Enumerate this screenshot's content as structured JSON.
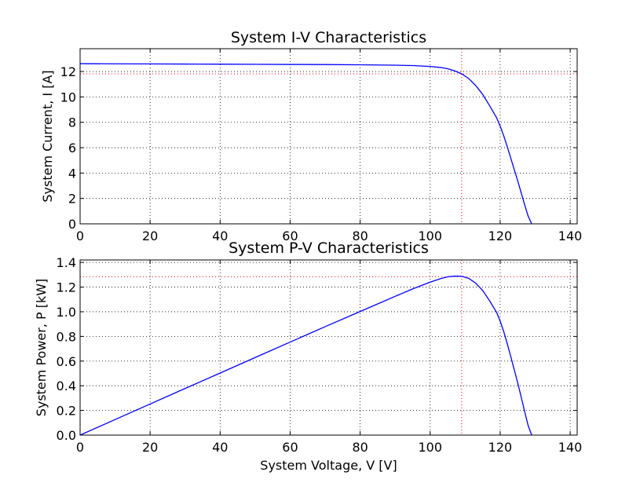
{
  "chart_data": [
    {
      "type": "line",
      "title": "System I-V Characteristics",
      "xlabel": "",
      "ylabel": "System Current, I [A]",
      "xlim": [
        0,
        142
      ],
      "ylim": [
        0,
        13.8
      ],
      "xticks": [
        0,
        20,
        40,
        60,
        80,
        100,
        120,
        140
      ],
      "yticks": [
        0,
        2,
        4,
        6,
        8,
        10,
        12
      ],
      "ytick_labels": [
        "0",
        "2",
        "4",
        "6",
        "8",
        "10",
        "12"
      ],
      "grid": true,
      "series": [
        {
          "color": "#0000ff",
          "x": [
            0,
            10,
            20,
            30,
            40,
            50,
            60,
            70,
            80,
            90,
            95,
            100,
            103,
            105,
            107,
            109,
            111,
            113,
            115,
            117,
            119,
            120,
            121,
            122,
            123,
            124,
            125,
            126,
            127,
            128,
            129
          ],
          "y": [
            12.62,
            12.61,
            12.6,
            12.59,
            12.58,
            12.57,
            12.56,
            12.55,
            12.53,
            12.5,
            12.47,
            12.4,
            12.32,
            12.22,
            12.05,
            11.82,
            11.45,
            10.9,
            10.2,
            9.3,
            8.35,
            7.7,
            6.95,
            6.1,
            5.2,
            4.3,
            3.4,
            2.45,
            1.5,
            0.6,
            0
          ]
        }
      ],
      "reference_lines": {
        "color": "#ff0000",
        "x": 109,
        "y": 11.82
      }
    },
    {
      "type": "line",
      "title": "System P-V Characteristics",
      "xlabel": "System Voltage, V [V]",
      "ylabel": "System Power,  P [kW]",
      "xlim": [
        0,
        142
      ],
      "ylim": [
        0,
        1.42
      ],
      "xticks": [
        0,
        20,
        40,
        60,
        80,
        100,
        120,
        140
      ],
      "yticks": [
        0,
        0.2,
        0.4,
        0.6,
        0.8,
        1.0,
        1.2,
        1.4
      ],
      "ytick_labels": [
        "0.0",
        "0.2",
        "0.4",
        "0.6",
        "0.8",
        "1.0",
        "1.2",
        "1.4"
      ],
      "grid": true,
      "series": [
        {
          "color": "#0000ff",
          "x": [
            0,
            10,
            20,
            30,
            40,
            50,
            60,
            70,
            80,
            90,
            95,
            100,
            103,
            105,
            107,
            109,
            111,
            113,
            115,
            117,
            119,
            120,
            121,
            122,
            123,
            124,
            125,
            126,
            127,
            128,
            129
          ],
          "y": [
            0,
            0.126,
            0.252,
            0.378,
            0.503,
            0.629,
            0.754,
            0.879,
            1.002,
            1.125,
            1.185,
            1.24,
            1.269,
            1.283,
            1.289,
            1.288,
            1.271,
            1.232,
            1.173,
            1.088,
            0.994,
            0.924,
            0.841,
            0.744,
            0.64,
            0.533,
            0.425,
            0.309,
            0.19,
            0.077,
            0
          ]
        }
      ],
      "reference_lines": {
        "color": "#ff0000",
        "x": 109,
        "y": 1.285
      }
    }
  ]
}
